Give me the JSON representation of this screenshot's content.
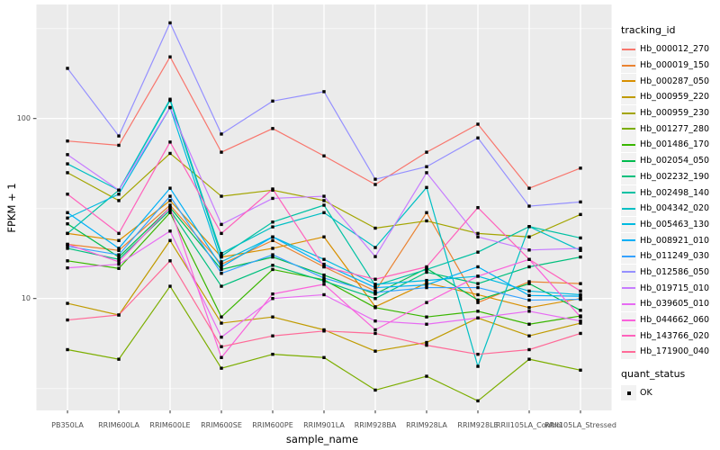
{
  "window": {
    "background": "#FFFFFF",
    "panel_background": "#EBEBEB",
    "gridline_color": "#FFFFFF",
    "tick_label_color": "#4D4D4D",
    "axis_tick_color": "#333333"
  },
  "chart_data": {
    "type": "line",
    "title": "",
    "xlabel": "sample_name",
    "ylabel": "FPKM + 1",
    "y_scale": "log10",
    "ylim": [
      2.4,
      425
    ],
    "y_major_ticks": [
      {
        "label": "100",
        "value": 100
      },
      {
        "label": "10",
        "value": 10
      }
    ],
    "y_minor_gridlines": [
      316,
      31.6,
      3.16
    ],
    "grid": true,
    "legend_position": "right",
    "marker": {
      "shape": "filled-square",
      "color": "#000000",
      "meaning": "quant_status OK"
    },
    "categories": [
      "PB350LA",
      "RRIM600LA",
      "RRIM600LE",
      "RRIM600SE",
      "RRIM600PE",
      "RRIM901LA",
      "RRIM928BA",
      "RRIM928LA",
      "RRIM928LE",
      "RRII105LA_Control",
      "RRII105LA_Stressed"
    ],
    "series": [
      {
        "name": "Hb_000012_270",
        "color": "#F8766D",
        "values": [
          75,
          71,
          220,
          65,
          88,
          62,
          43,
          65,
          93,
          41,
          53
        ]
      },
      {
        "name": "Hb_000019_150",
        "color": "#EA8331",
        "values": [
          20,
          18.5,
          33,
          15.5,
          21,
          15,
          11,
          30,
          9.5,
          12.4,
          12.1
        ]
      },
      {
        "name": "Hb_000287_050",
        "color": "#D89000",
        "values": [
          23,
          21,
          35,
          17,
          19,
          22,
          9,
          12.2,
          10.5,
          8.9,
          10
        ]
      },
      {
        "name": "Hb_000959_220",
        "color": "#C09B00",
        "values": [
          9.4,
          8.1,
          21,
          7.3,
          7.9,
          6.7,
          5.1,
          5.7,
          7.8,
          6.2,
          7.3
        ]
      },
      {
        "name": "Hb_000959_230",
        "color": "#A3A500",
        "values": [
          50,
          35,
          64,
          37,
          40,
          35,
          24.6,
          27,
          23,
          22,
          29.3
        ]
      },
      {
        "name": "Hb_001277_280",
        "color": "#7CAE00",
        "values": [
          5.2,
          4.6,
          11.7,
          4.1,
          4.9,
          4.7,
          3.1,
          3.7,
          2.7,
          4.6,
          4.0
        ]
      },
      {
        "name": "Hb_001486_170",
        "color": "#39B600",
        "values": [
          16.2,
          14.7,
          30,
          7.9,
          14.5,
          12.7,
          8.9,
          7.9,
          8.5,
          7.2,
          8.0
        ]
      },
      {
        "name": "Hb_002054_050",
        "color": "#00BB4E",
        "values": [
          26,
          17,
          32,
          14.5,
          17,
          13.5,
          10.6,
          14.7,
          9.8,
          12.1,
          8.6
        ]
      },
      {
        "name": "Hb_002232_190",
        "color": "#00BF7D",
        "values": [
          19,
          16.5,
          31,
          11.7,
          15.3,
          12.5,
          10,
          14,
          12.1,
          15,
          17
        ]
      },
      {
        "name": "Hb_002498_140",
        "color": "#00C1A3",
        "values": [
          23,
          40,
          126,
          17.2,
          26.6,
          33,
          11.8,
          14.5,
          18.1,
          25.1,
          21.7
        ]
      },
      {
        "name": "Hb_004342_020",
        "color": "#00BFC4",
        "values": [
          56,
          40,
          128,
          17.8,
          25,
          30,
          19.2,
          41.4,
          4.2,
          25.1,
          18.5
        ]
      },
      {
        "name": "Hb_005463_130",
        "color": "#00BAE0",
        "values": [
          28,
          38,
          115,
          16,
          22,
          16.5,
          12,
          12.6,
          13.3,
          11,
          10.5
        ]
      },
      {
        "name": "Hb_008921_010",
        "color": "#00B0F6",
        "values": [
          30,
          19,
          41,
          15,
          22,
          15.5,
          11.5,
          11.9,
          15,
          10.4,
          10.3
        ]
      },
      {
        "name": "Hb_011249_030",
        "color": "#35A2FF",
        "values": [
          19.5,
          17.5,
          37,
          13.8,
          17.5,
          13,
          10.8,
          11.5,
          11.5,
          9.8,
          9.9
        ]
      },
      {
        "name": "Hb_012586_050",
        "color": "#9590FF",
        "values": [
          190,
          80,
          340,
          82,
          125,
          141,
          46,
          54,
          78,
          32.6,
          34.4
        ]
      },
      {
        "name": "Hb_019715_010",
        "color": "#C77CFF",
        "values": [
          63,
          40,
          115,
          25.8,
          36,
          37,
          17.1,
          50,
          22,
          18.6,
          19
        ]
      },
      {
        "name": "Hb_039605_010",
        "color": "#E76BF3",
        "values": [
          14.8,
          15.5,
          23.7,
          6.1,
          10,
          10.5,
          7.5,
          7.2,
          7.8,
          8.5,
          7.5
        ]
      },
      {
        "name": "Hb_044662_060",
        "color": "#FA62DB",
        "values": [
          20,
          16,
          32,
          4.7,
          10.6,
          12,
          6.7,
          9.5,
          13.3,
          16.5,
          7.9
        ]
      },
      {
        "name": "Hb_143766_020",
        "color": "#FF62BC",
        "values": [
          38,
          23,
          74,
          23,
          40.6,
          15,
          12.8,
          15,
          32,
          16.5,
          11
        ]
      },
      {
        "name": "Hb_171900_040",
        "color": "#FF6A98",
        "values": [
          7.6,
          8.1,
          16.2,
          5.4,
          6.2,
          6.6,
          6.4,
          5.5,
          4.9,
          5.2,
          6.4
        ]
      }
    ]
  },
  "legend": {
    "tracking_title": "tracking_id",
    "quant_title": "quant_status",
    "quant_items": [
      {
        "label": "OK",
        "marker": "black-square"
      }
    ],
    "key_background": "#F2F2F2"
  }
}
